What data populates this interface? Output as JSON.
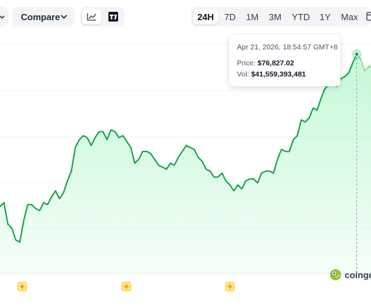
{
  "toolbar": {
    "compare_label": "Compare",
    "ranges": [
      "24H",
      "7D",
      "1M",
      "3M",
      "YTD",
      "1Y",
      "Max"
    ],
    "active_range": "24H"
  },
  "tooltip": {
    "timestamp": "Apr 21, 2026, 18:54:57 GMT+8",
    "price_label": "Price:",
    "price_value": "$76,827.02",
    "vol_label": "Vol:",
    "vol_value": "$41,559,393,481"
  },
  "watermark": {
    "text": "coinge"
  },
  "colors": {
    "line": "#16a34a",
    "area_top": "#bbf7d0",
    "marker": "#fcd34d",
    "active_bg": "#ffffff"
  },
  "chart_data": {
    "type": "area",
    "title": "",
    "xlabel": "",
    "ylabel": "",
    "grid": true,
    "series": [
      {
        "values": [
          75280,
          75320,
          75100,
          75060,
          74940,
          74920,
          75140,
          75300,
          75300,
          75260,
          75240,
          75320,
          75300,
          75380,
          75440,
          75360,
          75420,
          75540,
          75640,
          75880,
          75960,
          76000,
          75980,
          75900,
          75980,
          76040,
          76040,
          75960,
          76060,
          76040,
          75980,
          76000,
          75940,
          75880,
          75720,
          75760,
          75840,
          75840,
          75820,
          75760,
          75700,
          75680,
          75660,
          75720,
          75700,
          75780,
          75840,
          75900,
          75880,
          75860,
          75780,
          75740,
          75660,
          75640,
          75580,
          75580,
          75620,
          75540,
          75500,
          75440,
          75500,
          75460,
          75540,
          75560,
          75560,
          75520,
          75620,
          75640,
          75640,
          75620,
          75760,
          75860,
          75840,
          75840,
          75960,
          76000,
          76160,
          76140,
          76180,
          76280,
          76260,
          76380,
          76480,
          76520,
          76540,
          76500,
          76580,
          76600,
          76640,
          76740,
          76827,
          76780,
          76660,
          76700,
          76720,
          76640
        ]
      }
    ],
    "highlight_index": 90
  }
}
